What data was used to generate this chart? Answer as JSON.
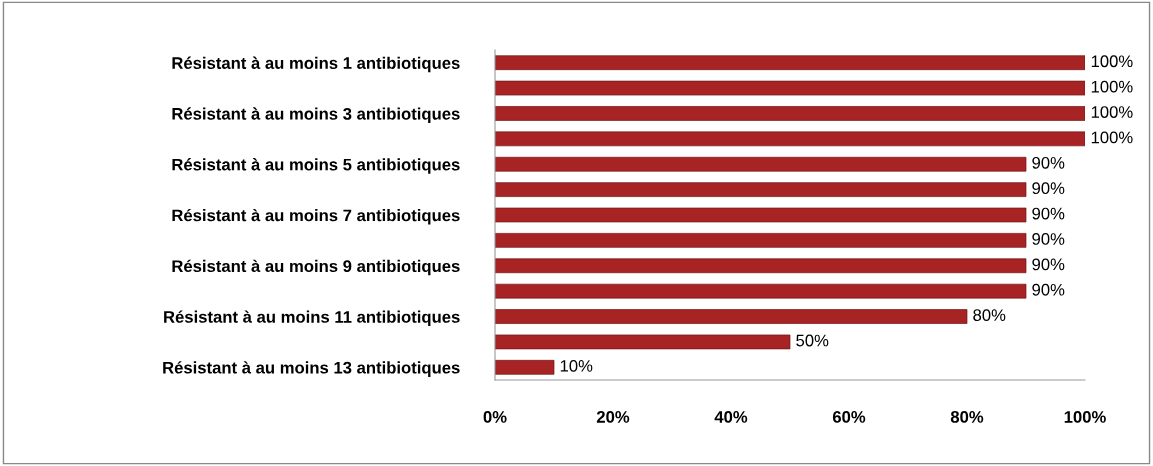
{
  "chart_data": {
    "type": "bar",
    "orientation": "horizontal",
    "categories": [
      "Résistant à au moins 1 antibiotiques",
      null,
      "Résistant à au moins 3 antibiotiques",
      null,
      "Résistant à au moins 5 antibiotiques",
      null,
      "Résistant à au moins 7 antibiotiques",
      null,
      "Résistant à au moins 9 antibiotiques",
      null,
      "Résistant à au moins 11 antibiotiques",
      null,
      "Résistant à au moins 13 antibiotiques"
    ],
    "values": [
      100,
      100,
      100,
      100,
      90,
      90,
      90,
      90,
      90,
      90,
      80,
      50,
      10
    ],
    "value_labels": [
      "100%",
      "100%",
      "100%",
      "100%",
      "90%",
      "90%",
      "90%",
      "90%",
      "90%",
      "90%",
      "80%",
      "50%",
      "10%"
    ],
    "color": "#a82424",
    "xlim": [
      0,
      100
    ],
    "xticks": [
      {
        "value": 0,
        "label": "0%"
      },
      {
        "value": 20,
        "label": "20%"
      },
      {
        "value": 40,
        "label": "40%"
      },
      {
        "value": 60,
        "label": "60%"
      },
      {
        "value": 80,
        "label": "80%"
      },
      {
        "value": 100,
        "label": "100%"
      }
    ],
    "grid": false,
    "legend": false
  }
}
